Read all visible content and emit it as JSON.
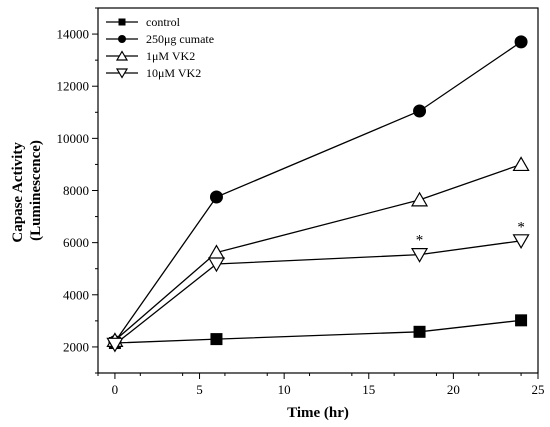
{
  "chart_data": {
    "type": "line",
    "xlabel": "Time (hr)",
    "ylabel_lines": [
      "Capase Activity",
      "(Luminescence)"
    ],
    "xlim": [
      -1,
      25
    ],
    "ylim": [
      1000,
      15000
    ],
    "xticks": [
      0,
      5,
      10,
      15,
      20,
      25
    ],
    "yticks": [
      2000,
      4000,
      6000,
      8000,
      10000,
      12000,
      14000
    ],
    "x": [
      0,
      6,
      18,
      24
    ],
    "series": [
      {
        "name": "control",
        "marker": "square",
        "values": [
          2150,
          2300,
          2580,
          3020
        ]
      },
      {
        "name": "250μg cumate",
        "marker": "circle",
        "values": [
          2200,
          7750,
          11050,
          13700
        ]
      },
      {
        "name": "1μM VK2",
        "marker": "triangle-up",
        "values": [
          2250,
          5620,
          7640,
          9000
        ]
      },
      {
        "name": "10μM VK2",
        "marker": "triangle-down",
        "values": [
          2100,
          5180,
          5540,
          6070
        ]
      }
    ],
    "annotations": [
      {
        "text": "*",
        "x": 18,
        "y": 6150
      },
      {
        "text": "*",
        "x": 24,
        "y": 6650
      }
    ],
    "legend_position": "top-left",
    "grid": false
  }
}
